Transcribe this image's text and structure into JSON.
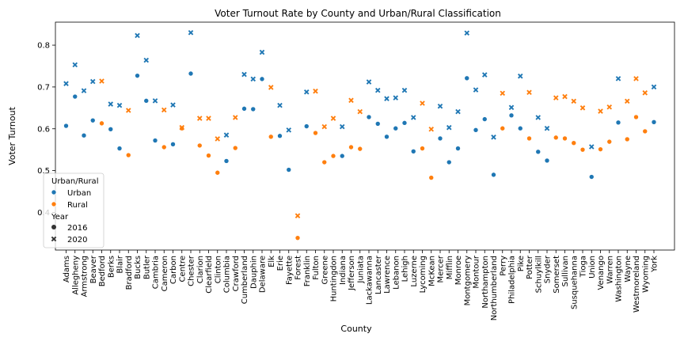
{
  "chart_data": {
    "type": "scatter",
    "title": "Voter Turnout Rate by County and Urban/Rural Classification",
    "xlabel": "County",
    "ylabel": "Voter Turnout",
    "ylim": [
      0.31,
      0.855
    ],
    "yticks": [
      "0.4",
      "0.5",
      "0.6",
      "0.7",
      "0.8"
    ],
    "yticks_values": [
      0.4,
      0.5,
      0.6,
      0.7,
      0.8
    ],
    "grid": false,
    "legend": {
      "placement": "bottom-left",
      "hue_title": "Urban/Rural",
      "hue_items": [
        {
          "label": "Urban",
          "color": "#1f77b4"
        },
        {
          "label": "Rural",
          "color": "#ff7f0e"
        }
      ],
      "style_title": "Year",
      "style_items": [
        {
          "label": "2016",
          "marker": "circle"
        },
        {
          "label": "2020",
          "marker": "x"
        }
      ]
    },
    "colors": {
      "Urban": "#1f77b4",
      "Rural": "#ff7f0e"
    },
    "points": [
      {
        "county": "Adams",
        "class": "Urban",
        "y2016": 0.607,
        "y2020": 0.708
      },
      {
        "county": "Allegheny",
        "class": "Urban",
        "y2016": 0.677,
        "y2020": 0.753
      },
      {
        "county": "Armstrong",
        "class": "Urban",
        "y2016": 0.584,
        "y2020": 0.691
      },
      {
        "county": "Beaver",
        "class": "Urban",
        "y2016": 0.62,
        "y2020": 0.713
      },
      {
        "county": "Bedford",
        "class": "Rural",
        "y2016": 0.613,
        "y2020": 0.714
      },
      {
        "county": "Berks",
        "class": "Urban",
        "y2016": 0.599,
        "y2020": 0.659
      },
      {
        "county": "Blair",
        "class": "Urban",
        "y2016": 0.553,
        "y2020": 0.656
      },
      {
        "county": "Bradford",
        "class": "Rural",
        "y2016": 0.537,
        "y2020": 0.644
      },
      {
        "county": "Bucks",
        "class": "Urban",
        "y2016": 0.727,
        "y2020": 0.823
      },
      {
        "county": "Butler",
        "class": "Urban",
        "y2016": 0.667,
        "y2020": 0.764
      },
      {
        "county": "Cambria",
        "class": "Urban",
        "y2016": 0.572,
        "y2020": 0.667
      },
      {
        "county": "Cameron",
        "class": "Rural",
        "y2016": 0.556,
        "y2020": 0.645
      },
      {
        "county": "Carbon",
        "class": "Urban",
        "y2016": 0.563,
        "y2020": 0.657
      },
      {
        "county": "Centre",
        "class": "Rural",
        "y2016": 0.601,
        "y2020": 0.603
      },
      {
        "county": "Chester",
        "class": "Urban",
        "y2016": 0.732,
        "y2020": 0.83
      },
      {
        "county": "Clarion",
        "class": "Rural",
        "y2016": 0.56,
        "y2020": 0.625
      },
      {
        "county": "Clearfield",
        "class": "Rural",
        "y2016": 0.536,
        "y2020": 0.625
      },
      {
        "county": "Clinton",
        "class": "Rural",
        "y2016": 0.495,
        "y2020": 0.576
      },
      {
        "county": "Columbia",
        "class": "Urban",
        "y2016": 0.523,
        "y2020": 0.585
      },
      {
        "county": "Crawford",
        "class": "Rural",
        "y2016": 0.554,
        "y2020": 0.627
      },
      {
        "county": "Cumberland",
        "class": "Urban",
        "y2016": 0.648,
        "y2020": 0.73
      },
      {
        "county": "Dauphin",
        "class": "Urban",
        "y2016": 0.647,
        "y2020": 0.719
      },
      {
        "county": "Delaware",
        "class": "Urban",
        "y2016": 0.719,
        "y2020": 0.783
      },
      {
        "county": "Elk",
        "class": "Rural",
        "y2016": 0.581,
        "y2020": 0.699
      },
      {
        "county": "Erie",
        "class": "Urban",
        "y2016": 0.583,
        "y2020": 0.656
      },
      {
        "county": "Fayette",
        "class": "Urban",
        "y2016": 0.502,
        "y2020": 0.597
      },
      {
        "county": "Forest",
        "class": "Rural",
        "y2016": 0.339,
        "y2020": 0.392
      },
      {
        "county": "Franklin",
        "class": "Urban",
        "y2016": 0.606,
        "y2020": 0.688
      },
      {
        "county": "Fulton",
        "class": "Rural",
        "y2016": 0.59,
        "y2020": 0.69
      },
      {
        "county": "Greene",
        "class": "Rural",
        "y2016": 0.52,
        "y2020": 0.605
      },
      {
        "county": "Huntingdon",
        "class": "Rural",
        "y2016": 0.535,
        "y2020": 0.625
      },
      {
        "county": "Indiana",
        "class": "Urban",
        "y2016": 0.535,
        "y2020": 0.605
      },
      {
        "county": "Jefferson",
        "class": "Rural",
        "y2016": 0.556,
        "y2020": 0.668
      },
      {
        "county": "Juniata",
        "class": "Rural",
        "y2016": 0.552,
        "y2020": 0.641
      },
      {
        "county": "Lackawanna",
        "class": "Urban",
        "y2016": 0.628,
        "y2020": 0.712
      },
      {
        "county": "Lancaster",
        "class": "Urban",
        "y2016": 0.612,
        "y2020": 0.692
      },
      {
        "county": "Lawrence",
        "class": "Urban",
        "y2016": 0.581,
        "y2020": 0.672
      },
      {
        "county": "Lebanon",
        "class": "Urban",
        "y2016": 0.601,
        "y2020": 0.674
      },
      {
        "county": "Lehigh",
        "class": "Urban",
        "y2016": 0.614,
        "y2020": 0.692
      },
      {
        "county": "Luzerne",
        "class": "Urban",
        "y2016": 0.546,
        "y2020": 0.627
      },
      {
        "county": "Lycoming",
        "class": "Rural",
        "y2016": 0.553,
        "y2020": 0.661
      },
      {
        "county": "McKean",
        "class": "Rural",
        "y2016": 0.483,
        "y2020": 0.599
      },
      {
        "county": "Mercer",
        "class": "Urban",
        "y2016": 0.577,
        "y2020": 0.654
      },
      {
        "county": "Mifflin",
        "class": "Urban",
        "y2016": 0.52,
        "y2020": 0.603
      },
      {
        "county": "Monroe",
        "class": "Urban",
        "y2016": 0.553,
        "y2020": 0.641
      },
      {
        "county": "Montgomery",
        "class": "Urban",
        "y2016": 0.721,
        "y2020": 0.829
      },
      {
        "county": "Montour",
        "class": "Urban",
        "y2016": 0.597,
        "y2020": 0.693
      },
      {
        "county": "Northampton",
        "class": "Urban",
        "y2016": 0.623,
        "y2020": 0.729
      },
      {
        "county": "Northumberland",
        "class": "Urban",
        "y2016": 0.49,
        "y2020": 0.58
      },
      {
        "county": "Perry",
        "class": "Rural",
        "y2016": 0.601,
        "y2020": 0.685
      },
      {
        "county": "Philadelphia",
        "class": "Urban",
        "y2016": 0.632,
        "y2020": 0.651
      },
      {
        "county": "Pike",
        "class": "Urban",
        "y2016": 0.601,
        "y2020": 0.726
      },
      {
        "county": "Potter",
        "class": "Rural",
        "y2016": 0.577,
        "y2020": 0.687
      },
      {
        "county": "Schuylkill",
        "class": "Urban",
        "y2016": 0.545,
        "y2020": 0.627
      },
      {
        "county": "Snyder",
        "class": "Urban",
        "y2016": 0.524,
        "y2020": 0.601
      },
      {
        "county": "Somerset",
        "class": "Rural",
        "y2016": 0.579,
        "y2020": 0.674
      },
      {
        "county": "Sullivan",
        "class": "Rural",
        "y2016": 0.577,
        "y2020": 0.677
      },
      {
        "county": "Susquehanna",
        "class": "Rural",
        "y2016": 0.566,
        "y2020": 0.666
      },
      {
        "county": "Tioga",
        "class": "Rural",
        "y2016": 0.55,
        "y2020": 0.65
      },
      {
        "county": "Union",
        "class": "Urban",
        "y2016": 0.485,
        "y2020": 0.557
      },
      {
        "county": "Venango",
        "class": "Rural",
        "y2016": 0.551,
        "y2020": 0.642
      },
      {
        "county": "Warren",
        "class": "Rural",
        "y2016": 0.569,
        "y2020": 0.652
      },
      {
        "county": "Washington",
        "class": "Urban",
        "y2016": 0.615,
        "y2020": 0.72
      },
      {
        "county": "Wayne",
        "class": "Rural",
        "y2016": 0.575,
        "y2020": 0.666
      },
      {
        "county": "Westmoreland",
        "class": "Rural",
        "y2016": 0.628,
        "y2020": 0.72
      },
      {
        "county": "Wyoming",
        "class": "Rural",
        "y2016": 0.594,
        "y2020": 0.686
      },
      {
        "county": "York",
        "class": "Urban",
        "y2016": 0.616,
        "y2020": 0.7
      }
    ]
  }
}
